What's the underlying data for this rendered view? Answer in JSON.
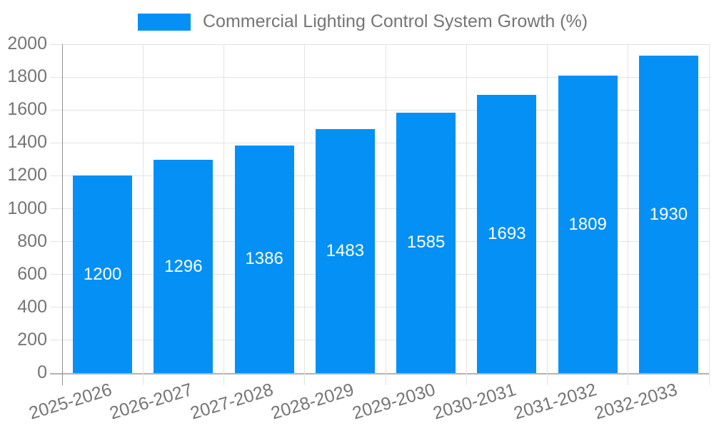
{
  "chart_data": {
    "type": "bar",
    "title": "Commercial Lighting Control System Growth (%)",
    "categories": [
      "2025-2026",
      "2026-2027",
      "2027-2028",
      "2028-2029",
      "2029-2030",
      "2030-2031",
      "2031-2032",
      "2032-2033"
    ],
    "values": [
      1200,
      1296,
      1386,
      1483,
      1585,
      1693,
      1809,
      1930
    ],
    "value_labels": [
      "1200",
      "1296",
      "1386",
      "1483",
      "1585",
      "1693",
      "1809",
      "1930"
    ],
    "xlabel": "",
    "ylabel": "",
    "ylim": [
      0,
      2000
    ],
    "ytick_step": 200,
    "ytick_labels": [
      "0",
      "200",
      "400",
      "600",
      "800",
      "1000",
      "1200",
      "1400",
      "1600",
      "1800",
      "2000"
    ],
    "grid": true,
    "legend_position": "top",
    "colors": {
      "bar": "#0490f5",
      "value_label": "#ffffff",
      "axis_text": "#757575",
      "gridline": "#e3e3e3",
      "x_axis_line": "#b3b3b3",
      "y_axis_line": "#8f8f8f"
    }
  }
}
